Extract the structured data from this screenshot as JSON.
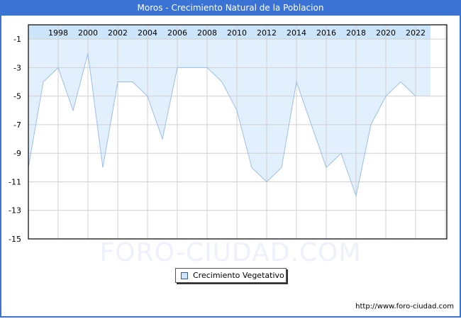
{
  "header": {
    "title": "Moros - Crecimiento Natural de la Poblacion"
  },
  "legend": {
    "label": "Crecimiento Vegetativo"
  },
  "watermark": "FORO-CIUDAD.COM",
  "footer": {
    "url": "http://www.foro-ciudad.com"
  },
  "colors": {
    "title_bar": "#3b73d5",
    "fill": "#e2f0fd",
    "top_band": "#cce5fb",
    "line": "#9cbfe8",
    "grid": "#d0d0d0"
  },
  "chart_data": {
    "type": "area",
    "title": "Moros - Crecimiento Natural de la Poblacion",
    "xlabel": "",
    "ylabel": "",
    "x": [
      1996,
      1997,
      1998,
      1999,
      2000,
      2001,
      2002,
      2003,
      2004,
      2005,
      2006,
      2007,
      2008,
      2009,
      2010,
      2011,
      2012,
      2013,
      2014,
      2015,
      2016,
      2017,
      2018,
      2019,
      2020,
      2021,
      2022
    ],
    "series": [
      {
        "name": "Crecimiento Vegetativo",
        "values": [
          -10,
          -4,
          -3,
          -6,
          -2,
          -10,
          -4,
          -4,
          -5,
          -8,
          -3,
          -3,
          -3,
          -4,
          -6,
          -10,
          -11,
          -10,
          -4,
          -7,
          -10,
          -9,
          -12,
          -7,
          -5,
          -4,
          -5
        ]
      }
    ],
    "x_tick_labels": [
      "1998",
      "2000",
      "2002",
      "2004",
      "2006",
      "2008",
      "2010",
      "2012",
      "2014",
      "2016",
      "2018",
      "2020",
      "2022"
    ],
    "y_tick_labels": [
      "-1",
      "-3",
      "-5",
      "-7",
      "-9",
      "-11",
      "-13",
      "-15"
    ],
    "ylim": [
      -15,
      0
    ],
    "grid": true,
    "legend_position": "bottom"
  }
}
